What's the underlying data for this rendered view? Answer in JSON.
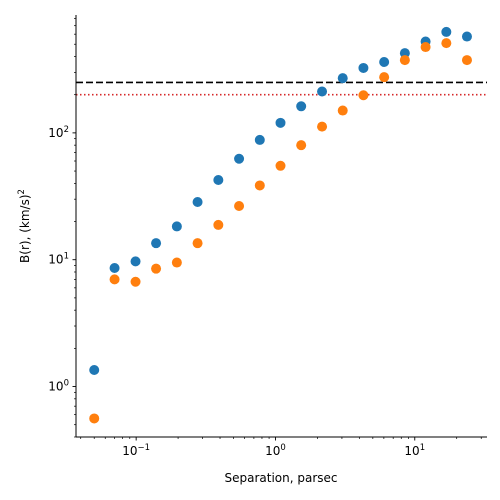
{
  "chart_data": {
    "type": "scatter",
    "title": "",
    "xlabel": "Separation, parsec",
    "ylabel": "B(r), (km/s)",
    "ylabel_sup": "2",
    "xscale": "log",
    "yscale": "log",
    "xlim": [
      0.037,
      33
    ],
    "ylim": [
      0.4,
      850
    ],
    "grid": false,
    "x_ticks": [
      {
        "value": 0.1,
        "base": "10",
        "exp": "−1"
      },
      {
        "value": 1,
        "base": "10",
        "exp": "0"
      },
      {
        "value": 10,
        "base": "10",
        "exp": "1"
      }
    ],
    "y_ticks": [
      {
        "value": 1,
        "base": "10",
        "exp": "0"
      },
      {
        "value": 10,
        "base": "10",
        "exp": "1"
      },
      {
        "value": 100,
        "base": "10",
        "exp": "2"
      }
    ],
    "series": [
      {
        "color": "#1f77b4",
        "x": [
          0.05,
          0.07,
          0.099,
          0.139,
          0.196,
          0.276,
          0.389,
          0.548,
          0.772,
          1.087,
          1.53,
          2.16,
          3.04,
          4.28,
          6.03,
          8.49,
          11.96,
          16.85,
          23.7
        ],
        "y": [
          1.35,
          8.6,
          9.7,
          13.5,
          18.3,
          28.5,
          42.5,
          62.5,
          88,
          120,
          162,
          212,
          270,
          325,
          362,
          425,
          525,
          625,
          575
        ]
      },
      {
        "color": "#ff7f0e",
        "x": [
          0.05,
          0.07,
          0.099,
          0.139,
          0.196,
          0.276,
          0.389,
          0.548,
          0.772,
          1.087,
          1.53,
          2.16,
          3.04,
          4.28,
          6.03,
          8.49,
          11.96,
          16.85,
          23.7
        ],
        "y": [
          0.56,
          7.0,
          6.7,
          8.5,
          9.5,
          13.5,
          18.8,
          26.5,
          38.5,
          55,
          80,
          112,
          150,
          198,
          275,
          375,
          475,
          510,
          375
        ]
      }
    ],
    "hlines": [
      {
        "y": 250,
        "style": "dashed",
        "color": "#000000"
      },
      {
        "y": 200,
        "style": "dotted",
        "color": "#d62728"
      }
    ]
  }
}
